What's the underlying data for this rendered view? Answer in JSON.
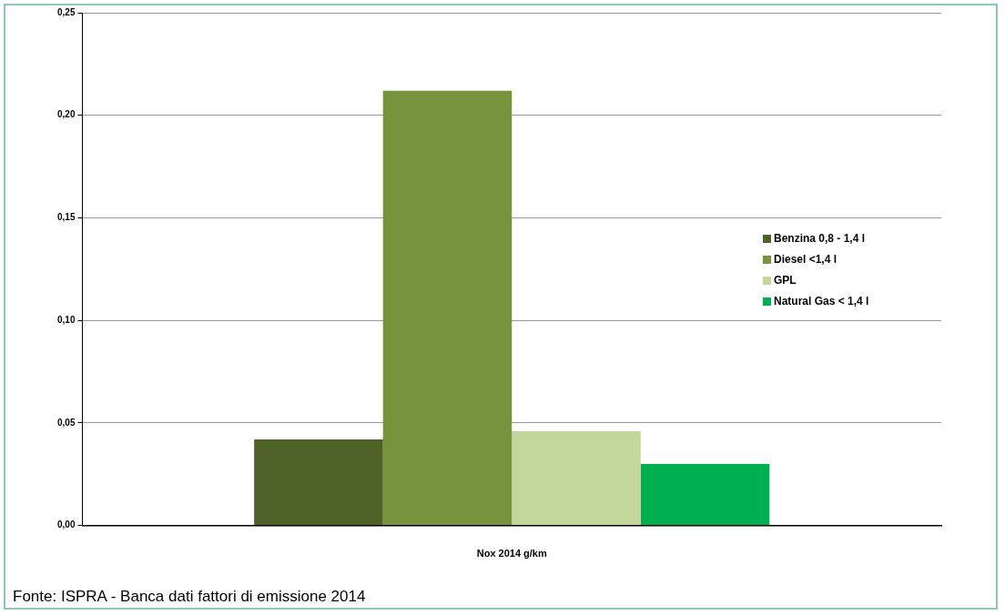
{
  "chart_data": {
    "type": "bar",
    "xlabel": "Nox 2014 g/km",
    "categories": [
      null
    ],
    "series": [
      {
        "name": "Benzina 0,8 - 1,4 l",
        "color": "#4f6228",
        "values": [
          0.042
        ]
      },
      {
        "name": "Diesel <1,4 l",
        "color": "#77933c",
        "values": [
          0.212
        ]
      },
      {
        "name": "GPL",
        "color": "#c3d69b",
        "values": [
          0.046
        ]
      },
      {
        "name": "Natural Gas < 1,4 l",
        "color": "#00b050",
        "values": [
          0.03
        ]
      }
    ],
    "ylim": [
      0,
      0.25
    ],
    "yticks": [
      {
        "value": 0,
        "label": "0,00"
      },
      {
        "value": 0.05,
        "label": "0,05"
      },
      {
        "value": 0.1,
        "label": "0,10"
      },
      {
        "value": 0.15,
        "label": "0,15"
      },
      {
        "value": 0.2,
        "label": "0,20"
      },
      {
        "value": 0.25,
        "label": "0,25"
      }
    ],
    "grid": "y",
    "legend": "right",
    "annotations": [
      "Fonte: ISPRA - Banca dati fattori di emissione 2014"
    ]
  }
}
